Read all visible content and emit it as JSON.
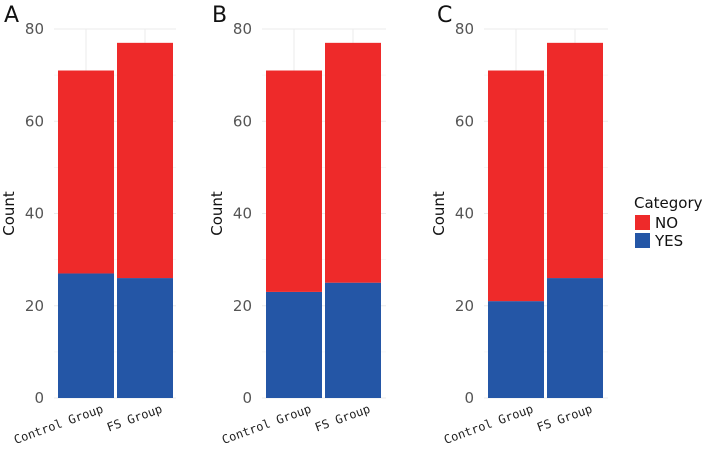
{
  "chart_data": [
    {
      "type": "bar",
      "stacked": true,
      "panel_label": "A",
      "categories": [
        "Control Group",
        "FS Group"
      ],
      "series": [
        {
          "name": "YES",
          "values": [
            27,
            26
          ]
        },
        {
          "name": "NO",
          "values": [
            44,
            51
          ]
        }
      ],
      "ylabel": "Count",
      "ylim": [
        0,
        80
      ],
      "yticks": [
        0,
        20,
        40,
        60,
        80
      ],
      "grid": true
    },
    {
      "type": "bar",
      "stacked": true,
      "panel_label": "B",
      "categories": [
        "Control Group",
        "FS Group"
      ],
      "series": [
        {
          "name": "YES",
          "values": [
            23,
            25
          ]
        },
        {
          "name": "NO",
          "values": [
            48,
            52
          ]
        }
      ],
      "ylabel": "Count",
      "ylim": [
        0,
        80
      ],
      "yticks": [
        0,
        20,
        40,
        60,
        80
      ],
      "grid": true
    },
    {
      "type": "bar",
      "stacked": true,
      "panel_label": "C",
      "categories": [
        "Control Group",
        "FS Group"
      ],
      "series": [
        {
          "name": "YES",
          "values": [
            21,
            26
          ]
        },
        {
          "name": "NO",
          "values": [
            50,
            51
          ]
        }
      ],
      "ylabel": "Count",
      "ylim": [
        0,
        80
      ],
      "yticks": [
        0,
        20,
        40,
        60,
        80
      ],
      "grid": true
    }
  ],
  "legend": {
    "title": "Category",
    "placement": "right",
    "items": [
      {
        "label": "NO",
        "color": "#ee2a2a"
      },
      {
        "label": "YES",
        "color": "#2456a6"
      }
    ]
  },
  "colors": {
    "NO": "#ee2a2a",
    "YES": "#2456a6"
  }
}
